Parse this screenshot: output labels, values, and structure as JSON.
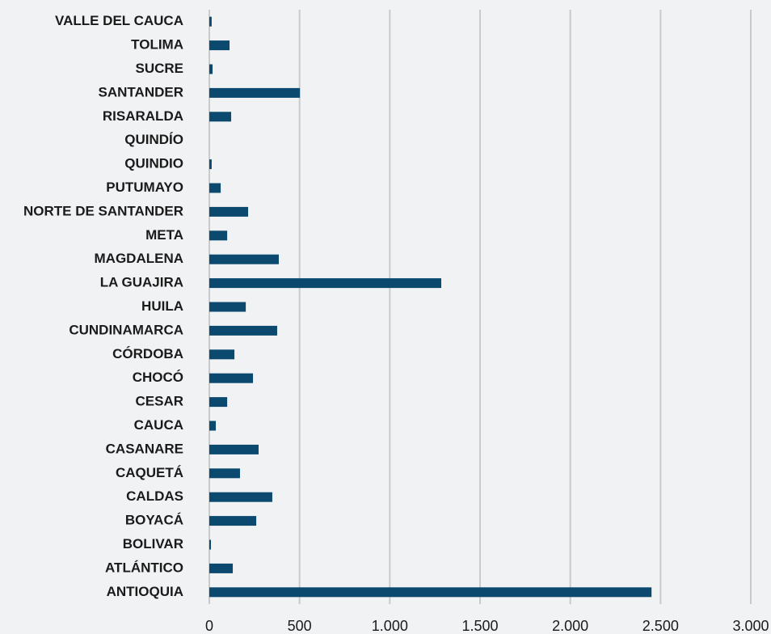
{
  "chart_data": {
    "type": "bar",
    "orientation": "horizontal",
    "categories": [
      "VALLE DEL CAUCA",
      "TOLIMA",
      "SUCRE",
      "SANTANDER",
      "RISARALDA",
      "QUINDÍO",
      "QUINDIO",
      "PUTUMAYO",
      "NORTE DE SANTANDER",
      "META",
      "MAGDALENA",
      "LA GUAJIRA",
      "HUILA",
      "CUNDINAMARCA",
      "CÓRDOBA",
      "CHOCÓ",
      "CESAR",
      "CAUCA",
      "CASANARE",
      "CAQUETÁ",
      "CALDAS",
      "BOYACÁ",
      "BOLIVAR",
      "ATLÁNTICO",
      "ANTIOQUIA"
    ],
    "values": [
      13,
      112,
      18,
      502,
      121,
      0,
      13,
      63,
      215,
      99,
      385,
      1285,
      202,
      376,
      139,
      242,
      99,
      36,
      273,
      170,
      349,
      260,
      9,
      130,
      2450
    ],
    "color": "#0b4a6e",
    "xlim": [
      0,
      3000
    ],
    "xticks": [
      0,
      500,
      {
        "value": 1000,
        "label": "1.000"
      },
      {
        "value": 1500,
        "label": "1.500"
      },
      {
        "value": 2000,
        "label": "2.000"
      },
      {
        "value": 2500,
        "label": "2.500"
      },
      {
        "value": 3000,
        "label": "3.000"
      }
    ],
    "grid": true
  }
}
